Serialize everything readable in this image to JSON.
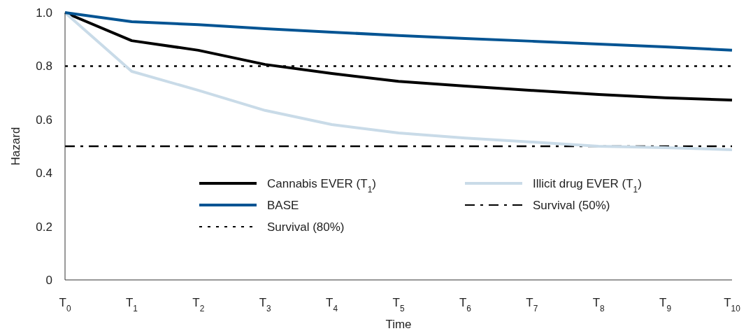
{
  "chart_data": {
    "type": "line",
    "xlabel": "Time",
    "ylabel": "Hazard",
    "categories": [
      "T$_{0}$",
      "T$_{1}$",
      "T$_{2}$",
      "T$_{3}$",
      "T$_{4}$",
      "T$_{5}$",
      "T$_{6}$",
      "T$_{7}$",
      "T$_{8}$",
      "T$_{9}$",
      "T$_{10}$"
    ],
    "series": [
      {
        "name": "Cannabis EVER (T$_{1}$)",
        "color": "#000000",
        "values": [
          1.0,
          0.895,
          0.859,
          0.806,
          0.772,
          0.743,
          0.725,
          0.709,
          0.694,
          0.681,
          0.673
        ]
      },
      {
        "name": "Illicit drug EVER (T$_{1}$)",
        "color": "#c9dbe8",
        "values": [
          1.0,
          0.78,
          0.709,
          0.634,
          0.581,
          0.55,
          0.531,
          0.516,
          0.5,
          0.495,
          0.487
        ]
      },
      {
        "name": "BASE",
        "color": "#035493",
        "values": [
          1.0,
          0.966,
          0.955,
          0.94,
          0.927,
          0.914,
          0.903,
          0.893,
          0.882,
          0.872,
          0.859
        ]
      }
    ],
    "ref_lines": [
      {
        "axis": "y",
        "value": 0.5,
        "label": "Survival (50%)",
        "line_style": "dashdot",
        "color": "#000000"
      },
      {
        "axis": "y",
        "value": 0.8,
        "label": "Survival (80%)",
        "line_style": "dotted",
        "color": "#000000"
      }
    ],
    "ylim": [
      0,
      1.0
    ],
    "yticks": [
      0,
      0.2,
      0.4,
      0.6,
      0.8,
      {
        "value": 1.0,
        "label": "1.0"
      }
    ],
    "grid": false,
    "legend": "bottom",
    "marker": "none",
    "line_style": "solid"
  }
}
